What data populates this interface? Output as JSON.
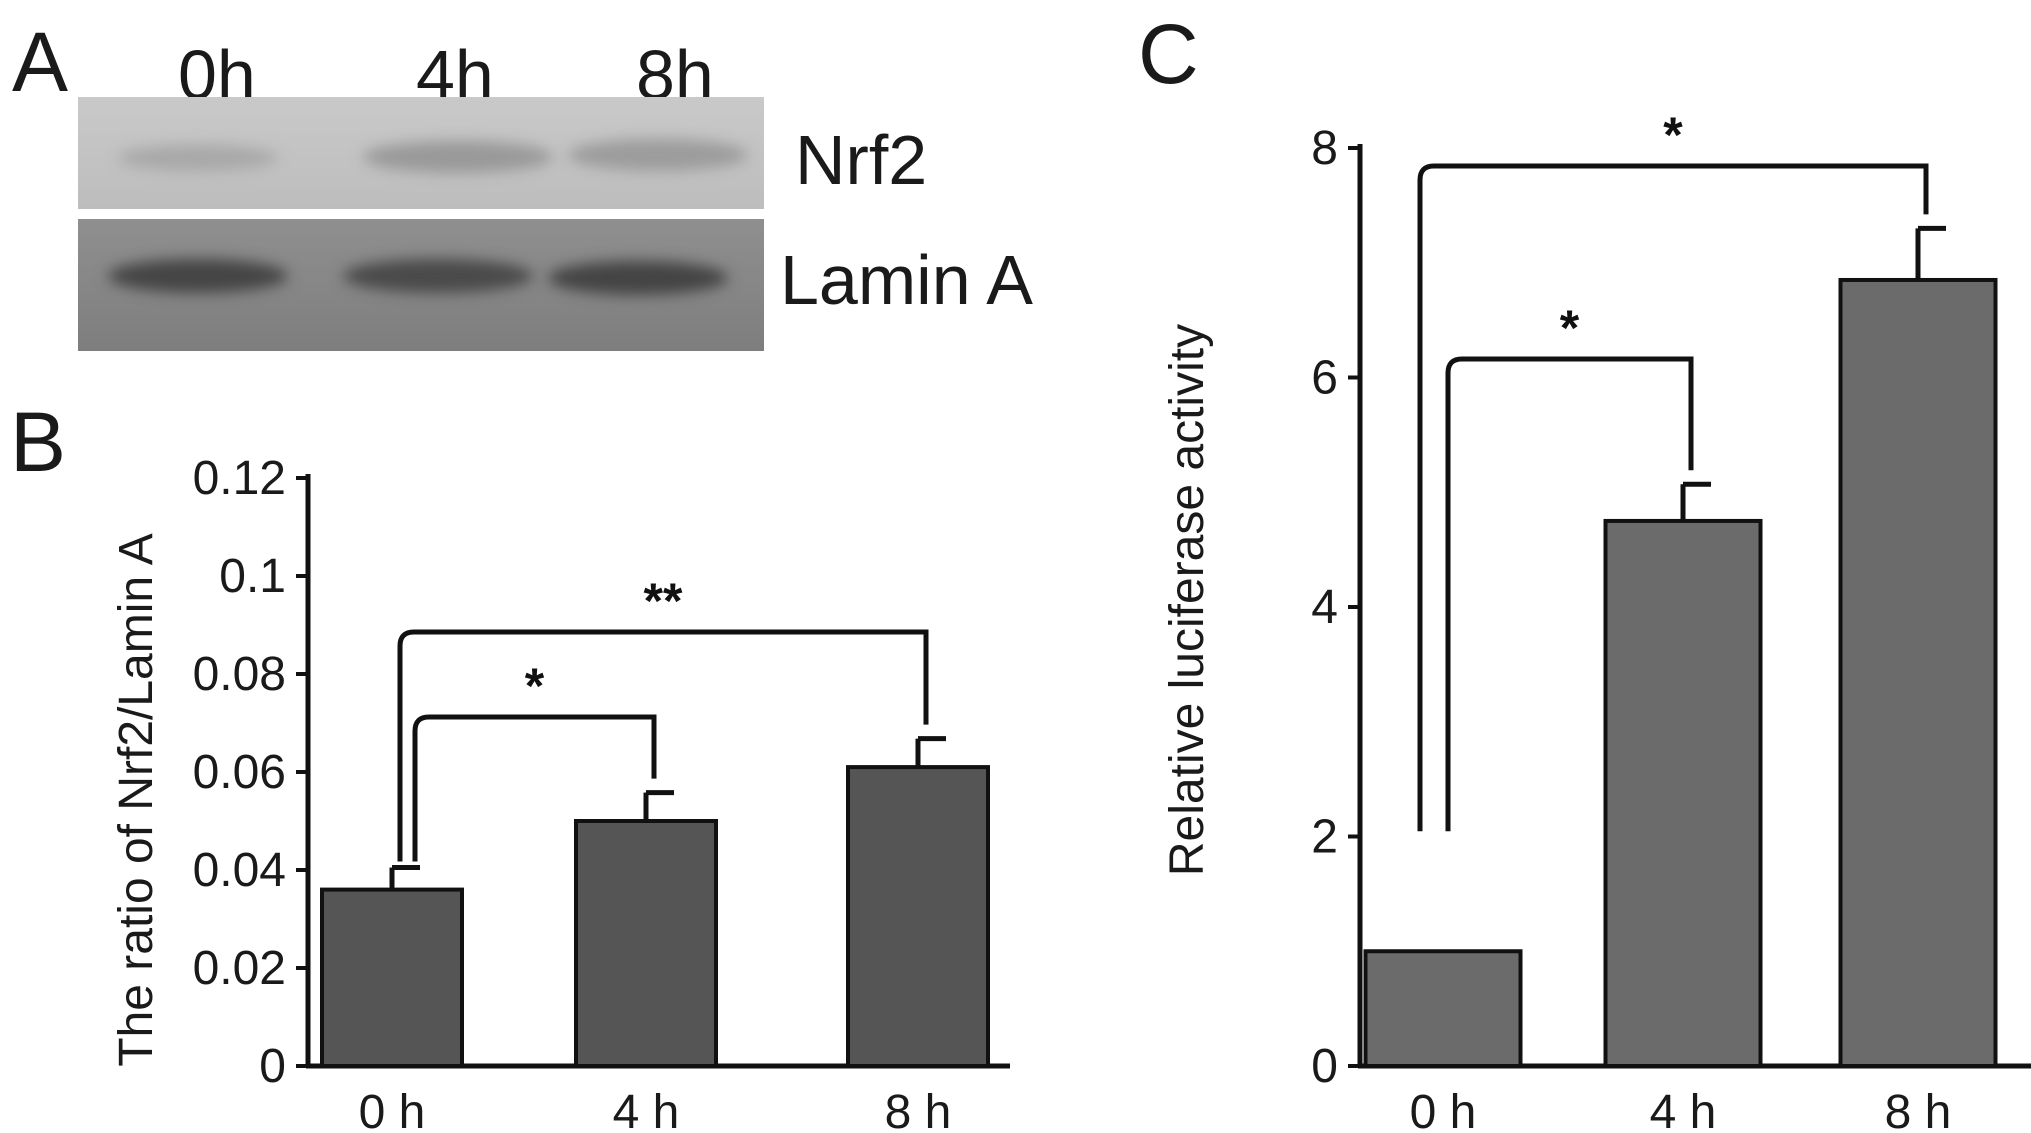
{
  "panels": {
    "a": "A",
    "b": "B",
    "c": "C"
  },
  "blot": {
    "lanes": [
      "0h",
      "4h",
      "8h"
    ],
    "rows": [
      "Nrf2",
      "Lamin A"
    ]
  },
  "chart_data": [
    {
      "panel": "B",
      "type": "bar",
      "categories": [
        "0 h",
        "4 h",
        "8 h"
      ],
      "values": [
        0.036,
        0.05,
        0.061
      ],
      "errors": [
        0.0045,
        0.0058,
        0.0058
      ],
      "ylabel": "The ratio of Nrf2/Lamin A",
      "xlabel": "",
      "ylim": [
        0,
        0.12
      ],
      "yticks": [
        "0",
        "0.02",
        "0.04",
        "0.06",
        "0.08",
        "0.1",
        "0.12"
      ],
      "comparisons": [
        {
          "from": 0,
          "to": 1,
          "label": "*"
        },
        {
          "from": 0,
          "to": 2,
          "label": "**"
        }
      ],
      "bar_color": "#555555"
    },
    {
      "panel": "C",
      "type": "bar",
      "categories": [
        "0 h",
        "4 h",
        "8 h"
      ],
      "values": [
        1.0,
        4.75,
        6.85
      ],
      "errors": [
        0,
        0.32,
        0.45
      ],
      "ylabel": "Relative luciferase activity",
      "xlabel": "",
      "ylim": [
        0,
        8
      ],
      "yticks": [
        "0",
        "2",
        "4",
        "6",
        "8"
      ],
      "comparisons": [
        {
          "from": 0,
          "to": 1,
          "label": "*"
        },
        {
          "from": 0,
          "to": 2,
          "label": "*"
        }
      ],
      "bar_color": "#6b6b6b"
    }
  ]
}
